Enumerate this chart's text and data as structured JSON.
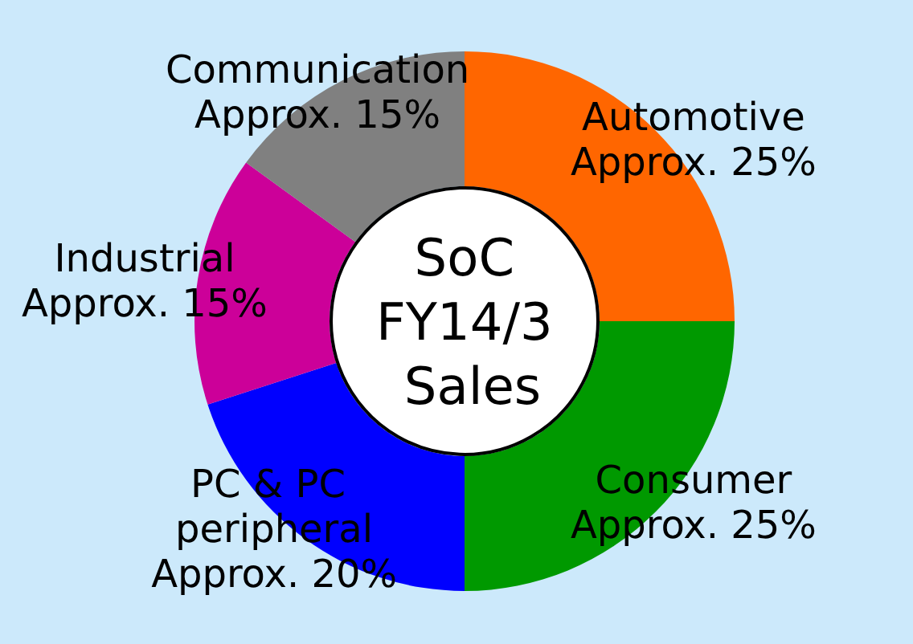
{
  "chart_data": {
    "type": "donut",
    "title": "SoC FY14/3 Sales",
    "categories": [
      "Automotive",
      "Consumer",
      "PC & PC peripheral",
      "Industrial",
      "Communication"
    ],
    "values": [
      25,
      25,
      20,
      15,
      15
    ],
    "value_labels": [
      "Approx. 25%",
      "Approx. 25%",
      "Approx. 20%",
      "Approx. 15%",
      "Approx. 15%"
    ],
    "colors": [
      "#ff6600",
      "#009900",
      "#0000ff",
      "#cc0099",
      "#808080"
    ],
    "legend": false
  }
}
